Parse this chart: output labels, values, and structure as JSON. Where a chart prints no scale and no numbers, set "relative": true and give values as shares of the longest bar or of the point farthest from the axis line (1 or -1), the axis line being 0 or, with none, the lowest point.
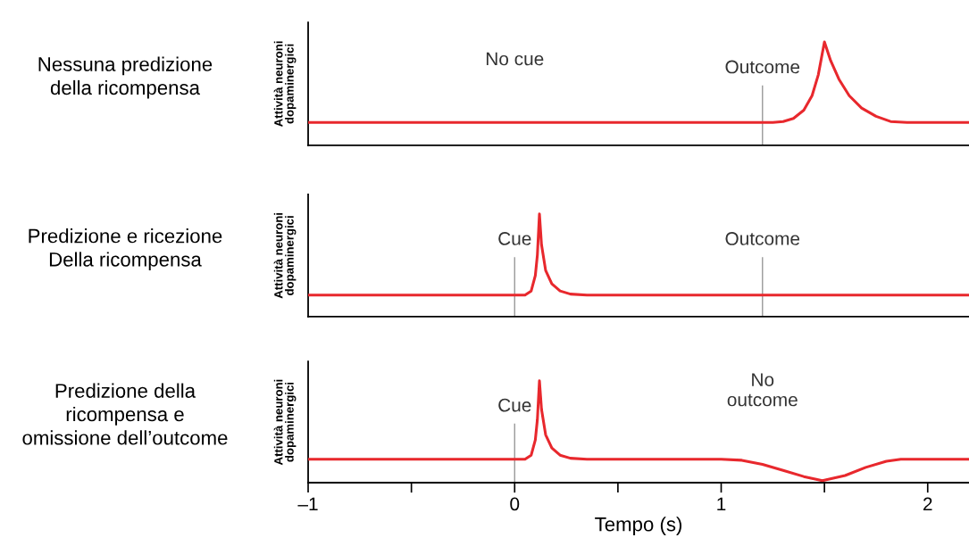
{
  "chart_data": [
    {
      "type": "line",
      "title": "Nessuna predizione\ndella ricompensa",
      "ylabel": "Attività neuroni\ndopaminergici",
      "relative": true,
      "xlim": [
        -1,
        2.2
      ],
      "tick_labels": false,
      "grid": false,
      "legend": false,
      "marker": "none",
      "line_style": "solid",
      "series": [
        {
          "color": "#e8282d",
          "x": [
            -1,
            1.25,
            1.3,
            1.35,
            1.4,
            1.44,
            1.47,
            1.5,
            1.53,
            1.57,
            1.62,
            1.68,
            1.75,
            1.82,
            1.9,
            2.2
          ],
          "values": [
            0.22,
            0.22,
            0.23,
            0.26,
            0.34,
            0.48,
            0.68,
            1,
            0.82,
            0.64,
            0.48,
            0.36,
            0.28,
            0.23,
            0.22,
            0.22
          ]
        }
      ],
      "ref_lines": [
        {
          "axis": "x",
          "value": 1.2,
          "label": "Outcome",
          "color": "#999999"
        }
      ],
      "annotations": [
        "No cue"
      ]
    },
    {
      "type": "line",
      "title": "Predizione e ricezione\nDella ricompensa",
      "ylabel": "Attività neuroni\ndopaminergici",
      "relative": true,
      "xlim": [
        -1,
        2.2
      ],
      "tick_labels": false,
      "grid": false,
      "legend": false,
      "marker": "none",
      "line_style": "solid",
      "series": [
        {
          "color": "#e8282d",
          "x": [
            -1,
            0.05,
            0.08,
            0.1,
            0.11,
            0.12,
            0.13,
            0.15,
            0.18,
            0.22,
            0.27,
            0.35,
            2.2
          ],
          "values": [
            0.21,
            0.21,
            0.25,
            0.4,
            0.6,
            1,
            0.7,
            0.45,
            0.32,
            0.25,
            0.22,
            0.21,
            0.21
          ]
        }
      ],
      "ref_lines": [
        {
          "axis": "x",
          "value": 0,
          "label": "Cue",
          "color": "#999999"
        },
        {
          "axis": "x",
          "value": 1.2,
          "label": "Outcome",
          "color": "#999999"
        }
      ]
    },
    {
      "type": "line",
      "title": "Predizione della\nricompensa e\nomissione dell’outcome",
      "ylabel": "Attività neuroni\ndopaminergici",
      "xlabel": "Tempo (s)",
      "relative": true,
      "xlim": [
        -1,
        2.2
      ],
      "xticks": [
        {
          "value": -1,
          "label": "–1"
        },
        {
          "value": -0.5,
          "label": null
        },
        0,
        {
          "value": 0.5,
          "label": null
        },
        1,
        {
          "value": 1.5,
          "label": null
        },
        2
      ],
      "tick_labels": "x",
      "grid": false,
      "legend": false,
      "marker": "none",
      "line_style": "solid",
      "series": [
        {
          "color": "#e8282d",
          "x": [
            -1,
            0.05,
            0.08,
            0.1,
            0.11,
            0.12,
            0.13,
            0.15,
            0.18,
            0.22,
            0.27,
            0.35,
            1.0,
            1.1,
            1.2,
            1.3,
            1.4,
            1.49,
            1.6,
            1.7,
            1.8,
            1.87,
            2.2
          ],
          "values": [
            0.23,
            0.23,
            0.27,
            0.42,
            0.62,
            1,
            0.72,
            0.47,
            0.34,
            0.27,
            0.24,
            0.23,
            0.23,
            0.22,
            0.18,
            0.12,
            0.06,
            0.02,
            0.07,
            0.15,
            0.21,
            0.23,
            0.23
          ]
        }
      ],
      "ref_lines": [
        {
          "axis": "x",
          "value": 0,
          "label": "Cue",
          "color": "#999999"
        }
      ],
      "annotations": [
        "No\noutcome"
      ]
    }
  ]
}
